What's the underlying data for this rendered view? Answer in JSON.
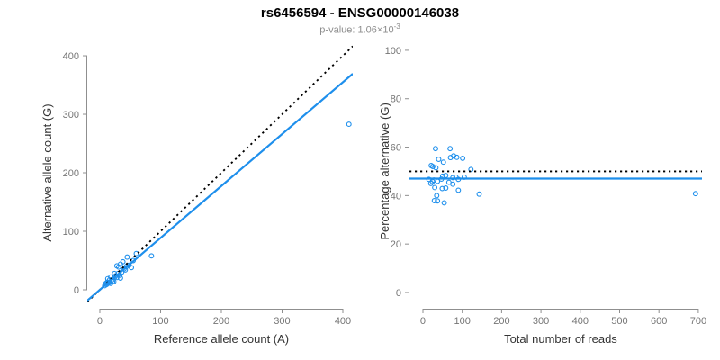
{
  "header": {
    "title": "rs6456594 - ENSG00000146038",
    "subtitle_prefix": "p-value: 1.06×10",
    "subtitle_exponent": "-3"
  },
  "colors": {
    "accent_blue": "#1E8FEC",
    "dotted_black": "#000000",
    "axis_line": "#8F8F8F",
    "tick_label": "#757575",
    "axis_title": "#333333",
    "subtitle_gray": "#8C8C8C"
  },
  "chart_data": [
    {
      "id": "allele-counts-scatter",
      "type": "scatter",
      "title": "",
      "xlabel": "Reference allele count (A)",
      "ylabel": "Alternative allele count (G)",
      "x_ticks": [
        0,
        100,
        200,
        300,
        400
      ],
      "y_ticks": [
        0,
        100,
        200,
        300,
        400
      ],
      "xlim": [
        -20.7,
        416.3
      ],
      "ylim": [
        -32.3,
        418.5
      ],
      "grid": false,
      "marker": "open-circle",
      "points": [
        [
          8,
          7
        ],
        [
          10,
          11
        ],
        [
          11,
          9
        ],
        [
          12,
          13
        ],
        [
          13,
          11
        ],
        [
          15,
          13
        ],
        [
          16,
          17
        ],
        [
          17,
          13
        ],
        [
          13,
          19
        ],
        [
          18,
          22
        ],
        [
          20,
          17
        ],
        [
          21,
          14
        ],
        [
          18,
          11
        ],
        [
          23,
          14
        ],
        [
          25,
          22
        ],
        [
          26,
          24
        ],
        [
          28,
          21
        ],
        [
          24,
          28
        ],
        [
          28,
          41
        ],
        [
          30,
          28
        ],
        [
          31,
          39
        ],
        [
          33,
          25
        ],
        [
          34,
          20
        ],
        [
          34,
          44
        ],
        [
          36,
          30
        ],
        [
          38,
          48
        ],
        [
          40,
          36
        ],
        [
          42,
          34
        ],
        [
          44,
          40
        ],
        [
          45,
          56
        ],
        [
          48,
          42
        ],
        [
          52,
          38
        ],
        [
          55,
          50
        ],
        [
          60,
          62
        ],
        [
          85,
          58
        ],
        [
          410,
          283
        ]
      ],
      "lines": [
        {
          "name": "identity-line",
          "style": "dotted",
          "color": "#000000",
          "slope": 1,
          "intercept": 0
        },
        {
          "name": "regression-line",
          "style": "solid",
          "color": "#1E8FEC",
          "slope": 0.887,
          "intercept": 0
        }
      ]
    },
    {
      "id": "percentage-scatter",
      "type": "scatter",
      "title": "",
      "xlabel": "Total number of reads",
      "ylabel": "Percentage alternative (G)",
      "x_ticks": [
        0,
        100,
        200,
        300,
        400,
        500,
        600,
        700
      ],
      "y_ticks": [
        0,
        20,
        40,
        60,
        80,
        100
      ],
      "xlim": [
        -34.3,
        709.4
      ],
      "ylim": [
        -6.7,
        102.2
      ],
      "grid": false,
      "marker": "open-circle",
      "points": [
        [
          15,
          46.7
        ],
        [
          21,
          52.4
        ],
        [
          20,
          45.0
        ],
        [
          25,
          52.0
        ],
        [
          24,
          45.8
        ],
        [
          28,
          46.4
        ],
        [
          33,
          51.5
        ],
        [
          30,
          43.3
        ],
        [
          32,
          59.4
        ],
        [
          40,
          55.0
        ],
        [
          37,
          45.9
        ],
        [
          35,
          40.0
        ],
        [
          29,
          37.9
        ],
        [
          37,
          37.8
        ],
        [
          47,
          46.8
        ],
        [
          50,
          48.0
        ],
        [
          49,
          42.9
        ],
        [
          52,
          53.8
        ],
        [
          69,
          59.4
        ],
        [
          58,
          48.3
        ],
        [
          70,
          55.7
        ],
        [
          58,
          43.1
        ],
        [
          54,
          37.0
        ],
        [
          78,
          56.4
        ],
        [
          66,
          45.5
        ],
        [
          86,
          55.8
        ],
        [
          76,
          47.4
        ],
        [
          76,
          44.7
        ],
        [
          84,
          47.6
        ],
        [
          101,
          55.4
        ],
        [
          90,
          46.7
        ],
        [
          90,
          42.2
        ],
        [
          105,
          47.6
        ],
        [
          122,
          50.8
        ],
        [
          143,
          40.6
        ],
        [
          693,
          40.8
        ]
      ],
      "lines": [
        {
          "name": "expected-percentage-line",
          "style": "dotted",
          "color": "#000000",
          "slope": 0,
          "intercept": 50
        },
        {
          "name": "observed-percentage-line",
          "style": "solid",
          "color": "#1E8FEC",
          "slope": 0,
          "intercept": 47
        }
      ]
    }
  ]
}
